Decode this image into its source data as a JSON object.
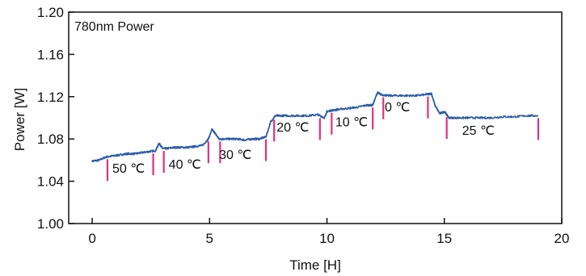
{
  "chart_data": {
    "type": "line",
    "title": "780nm Power",
    "xlabel": "Time [H]",
    "ylabel": "Power [W]",
    "xlim": [
      -1,
      20
    ],
    "ylim": [
      1.0,
      1.2
    ],
    "xticks": [
      "0",
      "5",
      "10",
      "15",
      "20"
    ],
    "yticks": [
      "1.00",
      "1.04",
      "1.08",
      "1.12",
      "1.16",
      "1.20"
    ],
    "grid": false,
    "colors": {
      "line": "#2a5caa",
      "markers": "#e0317e"
    },
    "series": [
      {
        "x": [
          0,
          0.3,
          0.6,
          0.9,
          1.2,
          1.5,
          1.8,
          2.1,
          2.4,
          2.7,
          2.85,
          3.0,
          3.2,
          3.5,
          3.8,
          4.1,
          4.4,
          4.7,
          4.95,
          5.1,
          5.25,
          5.4,
          5.6,
          5.9,
          6.2,
          6.5,
          6.8,
          7.1,
          7.4,
          7.6,
          7.8,
          8.0,
          8.4,
          8.8,
          9.2,
          9.6,
          9.9,
          10.0,
          10.2,
          10.5,
          10.9,
          11.3,
          11.7,
          11.95,
          12.15,
          12.3,
          12.6,
          13.0,
          13.4,
          13.8,
          14.2,
          14.45,
          14.6,
          14.8,
          15.0,
          15.2,
          15.6,
          16.0,
          16.5,
          17.0,
          17.5,
          18.0,
          18.5,
          19.0
        ],
        "y": [
          1.059,
          1.06,
          1.063,
          1.064,
          1.065,
          1.066,
          1.066,
          1.067,
          1.068,
          1.069,
          1.076,
          1.071,
          1.071,
          1.072,
          1.072,
          1.072,
          1.073,
          1.074,
          1.08,
          1.089,
          1.085,
          1.08,
          1.08,
          1.08,
          1.08,
          1.079,
          1.08,
          1.08,
          1.082,
          1.096,
          1.102,
          1.102,
          1.102,
          1.102,
          1.102,
          1.103,
          1.1,
          1.106,
          1.107,
          1.108,
          1.109,
          1.11,
          1.112,
          1.112,
          1.124,
          1.122,
          1.121,
          1.121,
          1.121,
          1.121,
          1.122,
          1.123,
          1.112,
          1.104,
          1.106,
          1.1,
          1.1,
          1.1,
          1.1,
          1.1,
          1.101,
          1.101,
          1.102,
          1.102
        ]
      }
    ],
    "markers_x": [
      0.65,
      2.6,
      3.05,
      4.95,
      5.45,
      7.4,
      7.75,
      9.7,
      10.2,
      11.95,
      12.4,
      14.3,
      15.1,
      19.0
    ],
    "segment_labels": [
      {
        "text": "50 ℃",
        "x": 1.55,
        "y": 1.048
      },
      {
        "text": "40 ℃",
        "x": 3.95,
        "y": 1.052
      },
      {
        "text": "30 ℃",
        "x": 6.1,
        "y": 1.061
      },
      {
        "text": "20 ℃",
        "x": 8.55,
        "y": 1.087
      },
      {
        "text": "10 ℃",
        "x": 11.05,
        "y": 1.092
      },
      {
        "text": "0 ℃",
        "x": 13.0,
        "y": 1.106
      },
      {
        "text": "25 ℃",
        "x": 16.45,
        "y": 1.084
      }
    ]
  }
}
